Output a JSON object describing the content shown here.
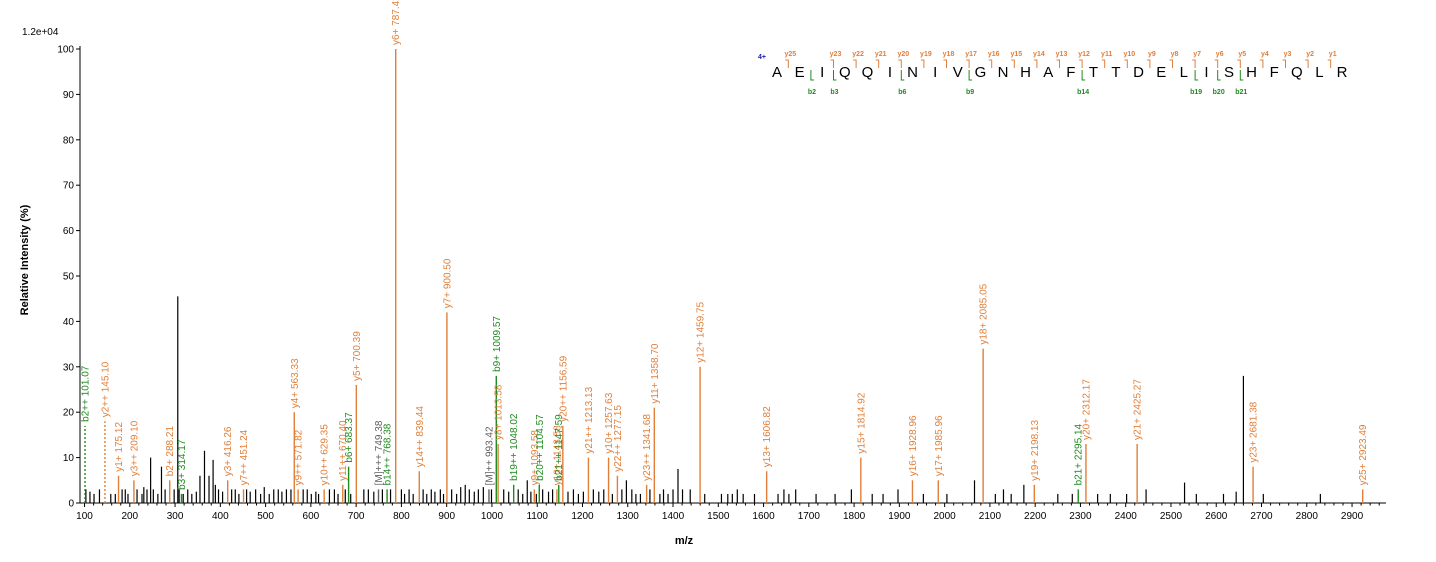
{
  "chart_data": {
    "type": "bar",
    "scale_label": "1.2e+04",
    "xlabel": "m/z",
    "ylabel": "Relative   Intensity (%)",
    "xlim": [
      90,
      2975
    ],
    "ylim": [
      0,
      100
    ],
    "x_ticks": [
      100,
      200,
      300,
      400,
      500,
      600,
      700,
      800,
      900,
      1000,
      1100,
      1200,
      1300,
      1400,
      1500,
      1600,
      1700,
      1800,
      1900,
      2000,
      2100,
      2200,
      2300,
      2400,
      2500,
      2600,
      2700,
      2800,
      2900
    ],
    "y_ticks": [
      0,
      10,
      20,
      30,
      40,
      50,
      60,
      70,
      80,
      90,
      100
    ],
    "colors": {
      "y_ion": "#e07f3a",
      "b_ion": "#1f8a1f",
      "other_ion": "#606060",
      "unassigned": "#000000",
      "charge": "#1a1aa8"
    },
    "annotated_peaks": [
      {
        "mz": 101.07,
        "i": 13,
        "label": "b2++ 101.07",
        "kind": "b",
        "dashed": true
      },
      {
        "mz": 145.1,
        "i": 14,
        "label": "y2++ 145.10",
        "kind": "y",
        "dashed": true
      },
      {
        "mz": 175.12,
        "i": 6,
        "label": "y1+ 175.12",
        "kind": "y"
      },
      {
        "mz": 209.1,
        "i": 5,
        "label": "y3++ 209.10",
        "kind": "y"
      },
      {
        "mz": 288.21,
        "i": 5,
        "label": "b2+ 288.21",
        "kind": "y"
      },
      {
        "mz": 314.17,
        "i": 2,
        "label": "b3+ 314.17",
        "kind": "b"
      },
      {
        "mz": 416.26,
        "i": 5,
        "label": "y3+ 416.26",
        "kind": "y"
      },
      {
        "mz": 451.24,
        "i": 3,
        "label": "y7++ 451.24",
        "kind": "y"
      },
      {
        "mz": 563.33,
        "i": 20,
        "label": "y4+ 563.33",
        "kind": "y"
      },
      {
        "mz": 571.82,
        "i": 3,
        "label": "y9++ 571.82",
        "kind": "y"
      },
      {
        "mz": 629.35,
        "i": 3,
        "label": "y10++ 629.35",
        "kind": "y"
      },
      {
        "mz": 670.4,
        "i": 4,
        "label": "y11++ 670.40",
        "kind": "y"
      },
      {
        "mz": 683.37,
        "i": 8,
        "label": "b6+ 683.37",
        "kind": "b"
      },
      {
        "mz": 700.39,
        "i": 26,
        "label": "y5+ 700.39",
        "kind": "y"
      },
      {
        "mz": 749.38,
        "i": 3,
        "label": "[M]+++ 749.38",
        "kind": "o"
      },
      {
        "mz": 768.38,
        "i": 3,
        "label": "b14++ 768.38",
        "kind": "b"
      },
      {
        "mz": 787.42,
        "i": 100,
        "label": "y6+ 787.42",
        "kind": "y"
      },
      {
        "mz": 839.44,
        "i": 7,
        "label": "y14++ 839.44",
        "kind": "y"
      },
      {
        "mz": 900.5,
        "i": 42,
        "label": "y7+ 900.50",
        "kind": "y"
      },
      {
        "mz": 993.42,
        "i": 3,
        "label": "[M]++ 993.42",
        "kind": "o"
      },
      {
        "mz": 1009.57,
        "i": 28,
        "label": "b9+ 1009.57",
        "kind": "b"
      },
      {
        "mz": 1013.58,
        "i": 13,
        "label": "y8+ 1013.58",
        "kind": "y"
      },
      {
        "mz": 1048.02,
        "i": 4,
        "label": "b19++ 1048.02",
        "kind": "b"
      },
      {
        "mz": 1093.58,
        "i": 3,
        "label": "y9+ 1093.58",
        "kind": "y"
      },
      {
        "mz": 1104.57,
        "i": 4,
        "label": "b20++ 1104.57",
        "kind": "b"
      },
      {
        "mz": 1143.58,
        "i": 3,
        "label": "y10+ 1143.58",
        "kind": "y"
      },
      {
        "mz": 1147.59,
        "i": 4,
        "label": "b21++ 1147.59",
        "kind": "b"
      },
      {
        "mz": 1156.59,
        "i": 17,
        "label": "y20++ 1156.59",
        "kind": "y"
      },
      {
        "mz": 1213.13,
        "i": 10,
        "label": "y21++ 1213.13",
        "kind": "y"
      },
      {
        "mz": 1257.63,
        "i": 10,
        "label": "y10+ 1257.63",
        "kind": "y"
      },
      {
        "mz": 1277.15,
        "i": 6,
        "label": "y22++ 1277.15",
        "kind": "y"
      },
      {
        "mz": 1341.68,
        "i": 4,
        "label": "y23++ 1341.68",
        "kind": "y"
      },
      {
        "mz": 1358.7,
        "i": 21,
        "label": "y11+ 1358.70",
        "kind": "y"
      },
      {
        "mz": 1459.75,
        "i": 30,
        "label": "y12+ 1459.75",
        "kind": "y"
      },
      {
        "mz": 1606.82,
        "i": 7,
        "label": "y13+ 1606.82",
        "kind": "y"
      },
      {
        "mz": 1814.92,
        "i": 10,
        "label": "y15+ 1814.92",
        "kind": "y"
      },
      {
        "mz": 1928.96,
        "i": 5,
        "label": "y16+ 1928.96",
        "kind": "y"
      },
      {
        "mz": 1985.96,
        "i": 5,
        "label": "y17+ 1985.96",
        "kind": "y"
      },
      {
        "mz": 2085.05,
        "i": 34,
        "label": "y18+ 2085.05",
        "kind": "y"
      },
      {
        "mz": 2198.13,
        "i": 4,
        "label": "y19+ 2198.13",
        "kind": "y"
      },
      {
        "mz": 2295.14,
        "i": 3,
        "label": "b21+ 2295.14",
        "kind": "b"
      },
      {
        "mz": 2312.17,
        "i": 13,
        "label": "y20+ 2312.17",
        "kind": "y"
      },
      {
        "mz": 2425.27,
        "i": 13,
        "label": "y21+ 2425.27",
        "kind": "y"
      },
      {
        "mz": 2681.38,
        "i": 8,
        "label": "y23+ 2681.38",
        "kind": "y"
      },
      {
        "mz": 2923.49,
        "i": 3,
        "label": "y25+ 2923.49",
        "kind": "y"
      }
    ],
    "unassigned_peaks": [
      [
        103,
        3
      ],
      [
        112,
        2.5
      ],
      [
        121,
        2
      ],
      [
        133,
        3
      ],
      [
        158,
        2
      ],
      [
        168,
        2
      ],
      [
        183,
        3
      ],
      [
        190,
        3
      ],
      [
        196,
        2
      ],
      [
        216,
        3
      ],
      [
        227,
        2
      ],
      [
        231,
        3.5
      ],
      [
        238,
        3
      ],
      [
        246,
        10
      ],
      [
        252,
        3
      ],
      [
        262,
        2
      ],
      [
        270,
        8
      ],
      [
        278,
        3
      ],
      [
        298,
        3
      ],
      [
        306,
        45.5
      ],
      [
        309,
        3
      ],
      [
        318,
        2
      ],
      [
        328,
        3
      ],
      [
        337,
        2
      ],
      [
        347,
        2.5
      ],
      [
        355,
        6
      ],
      [
        365,
        11.5
      ],
      [
        375,
        6
      ],
      [
        384,
        9.5
      ],
      [
        389,
        4
      ],
      [
        396,
        3
      ],
      [
        405,
        2.5
      ],
      [
        425,
        3
      ],
      [
        433,
        3
      ],
      [
        441,
        2
      ],
      [
        458,
        3
      ],
      [
        466,
        2.5
      ],
      [
        478,
        3
      ],
      [
        489,
        2
      ],
      [
        497,
        3.5
      ],
      [
        508,
        2
      ],
      [
        518,
        3
      ],
      [
        528,
        3
      ],
      [
        536,
        2.5
      ],
      [
        546,
        3
      ],
      [
        556,
        3
      ],
      [
        583,
        3
      ],
      [
        592,
        3
      ],
      [
        601,
        2
      ],
      [
        611,
        2.5
      ],
      [
        617,
        2
      ],
      [
        641,
        3
      ],
      [
        652,
        3
      ],
      [
        660,
        2
      ],
      [
        676,
        3
      ],
      [
        688,
        2
      ],
      [
        717,
        3
      ],
      [
        727,
        3
      ],
      [
        739,
        2.5
      ],
      [
        758,
        3
      ],
      [
        776,
        3
      ],
      [
        800,
        3
      ],
      [
        807,
        2
      ],
      [
        817,
        3
      ],
      [
        826,
        2
      ],
      [
        848,
        3
      ],
      [
        856,
        2
      ],
      [
        866,
        3
      ],
      [
        874,
        2.5
      ],
      [
        886,
        3
      ],
      [
        893,
        2
      ],
      [
        911,
        3
      ],
      [
        922,
        2
      ],
      [
        931,
        3.5
      ],
      [
        941,
        4
      ],
      [
        950,
        3
      ],
      [
        961,
        2.5
      ],
      [
        970,
        3
      ],
      [
        981,
        3.5
      ],
      [
        999,
        3
      ],
      [
        1026,
        3
      ],
      [
        1037,
        2.5
      ],
      [
        1058,
        3
      ],
      [
        1068,
        2
      ],
      [
        1078,
        5
      ],
      [
        1086,
        2.5
      ],
      [
        1098,
        2
      ],
      [
        1112,
        3
      ],
      [
        1125,
        2.5
      ],
      [
        1134,
        3
      ],
      [
        1168,
        2.5
      ],
      [
        1180,
        3
      ],
      [
        1191,
        2
      ],
      [
        1202,
        2.5
      ],
      [
        1224,
        3
      ],
      [
        1236,
        2.5
      ],
      [
        1247,
        3
      ],
      [
        1266,
        2
      ],
      [
        1287,
        3
      ],
      [
        1297,
        5
      ],
      [
        1309,
        3
      ],
      [
        1318,
        2
      ],
      [
        1328,
        2
      ],
      [
        1349,
        3
      ],
      [
        1371,
        2
      ],
      [
        1379,
        3
      ],
      [
        1389,
        2
      ],
      [
        1400,
        3
      ],
      [
        1411,
        7.5
      ],
      [
        1421,
        3
      ],
      [
        1438,
        3
      ],
      [
        1470,
        2
      ],
      [
        1507,
        2
      ],
      [
        1521,
        2
      ],
      [
        1531,
        2
      ],
      [
        1542,
        3
      ],
      [
        1555,
        2
      ],
      [
        1580,
        2
      ],
      [
        1632,
        2
      ],
      [
        1645,
        3
      ],
      [
        1656,
        2
      ],
      [
        1671,
        3
      ],
      [
        1716,
        2
      ],
      [
        1758,
        2
      ],
      [
        1794,
        3
      ],
      [
        1840,
        2
      ],
      [
        1864,
        2
      ],
      [
        1897,
        3
      ],
      [
        1953,
        2
      ],
      [
        2005,
        2
      ],
      [
        2066,
        5
      ],
      [
        2112,
        2
      ],
      [
        2130,
        3
      ],
      [
        2147,
        2
      ],
      [
        2175,
        4
      ],
      [
        2250,
        2
      ],
      [
        2282,
        2
      ],
      [
        2338,
        2
      ],
      [
        2366,
        2
      ],
      [
        2402,
        2
      ],
      [
        2445,
        3
      ],
      [
        2530,
        4.5
      ],
      [
        2556,
        2
      ],
      [
        2616,
        2
      ],
      [
        2644,
        2.5
      ],
      [
        2660,
        28
      ],
      [
        2704,
        2
      ],
      [
        2830,
        2
      ]
    ],
    "sequence": {
      "charge": "4+",
      "residues": [
        "A",
        "E",
        "I",
        "Q",
        "Q",
        "I",
        "N",
        "I",
        "V",
        "G",
        "N",
        "H",
        "A",
        "F",
        "T",
        "T",
        "D",
        "E",
        "L",
        "I",
        "S",
        "H",
        "F",
        "Q",
        "L",
        "R"
      ],
      "y_ions": [
        "y25",
        "y23",
        "y22",
        "y21",
        "y20",
        "y19",
        "y18",
        "y17",
        "y16",
        "y15",
        "y14",
        "y13",
        "y12",
        "y11",
        "y10",
        "y9",
        "y8",
        "y7",
        "y6",
        "y5",
        "y4",
        "y3",
        "y2",
        "y1"
      ],
      "b_ions": [
        "b2",
        "b3",
        "b6",
        "b9",
        "b14",
        "b19",
        "b20",
        "b21"
      ]
    }
  }
}
